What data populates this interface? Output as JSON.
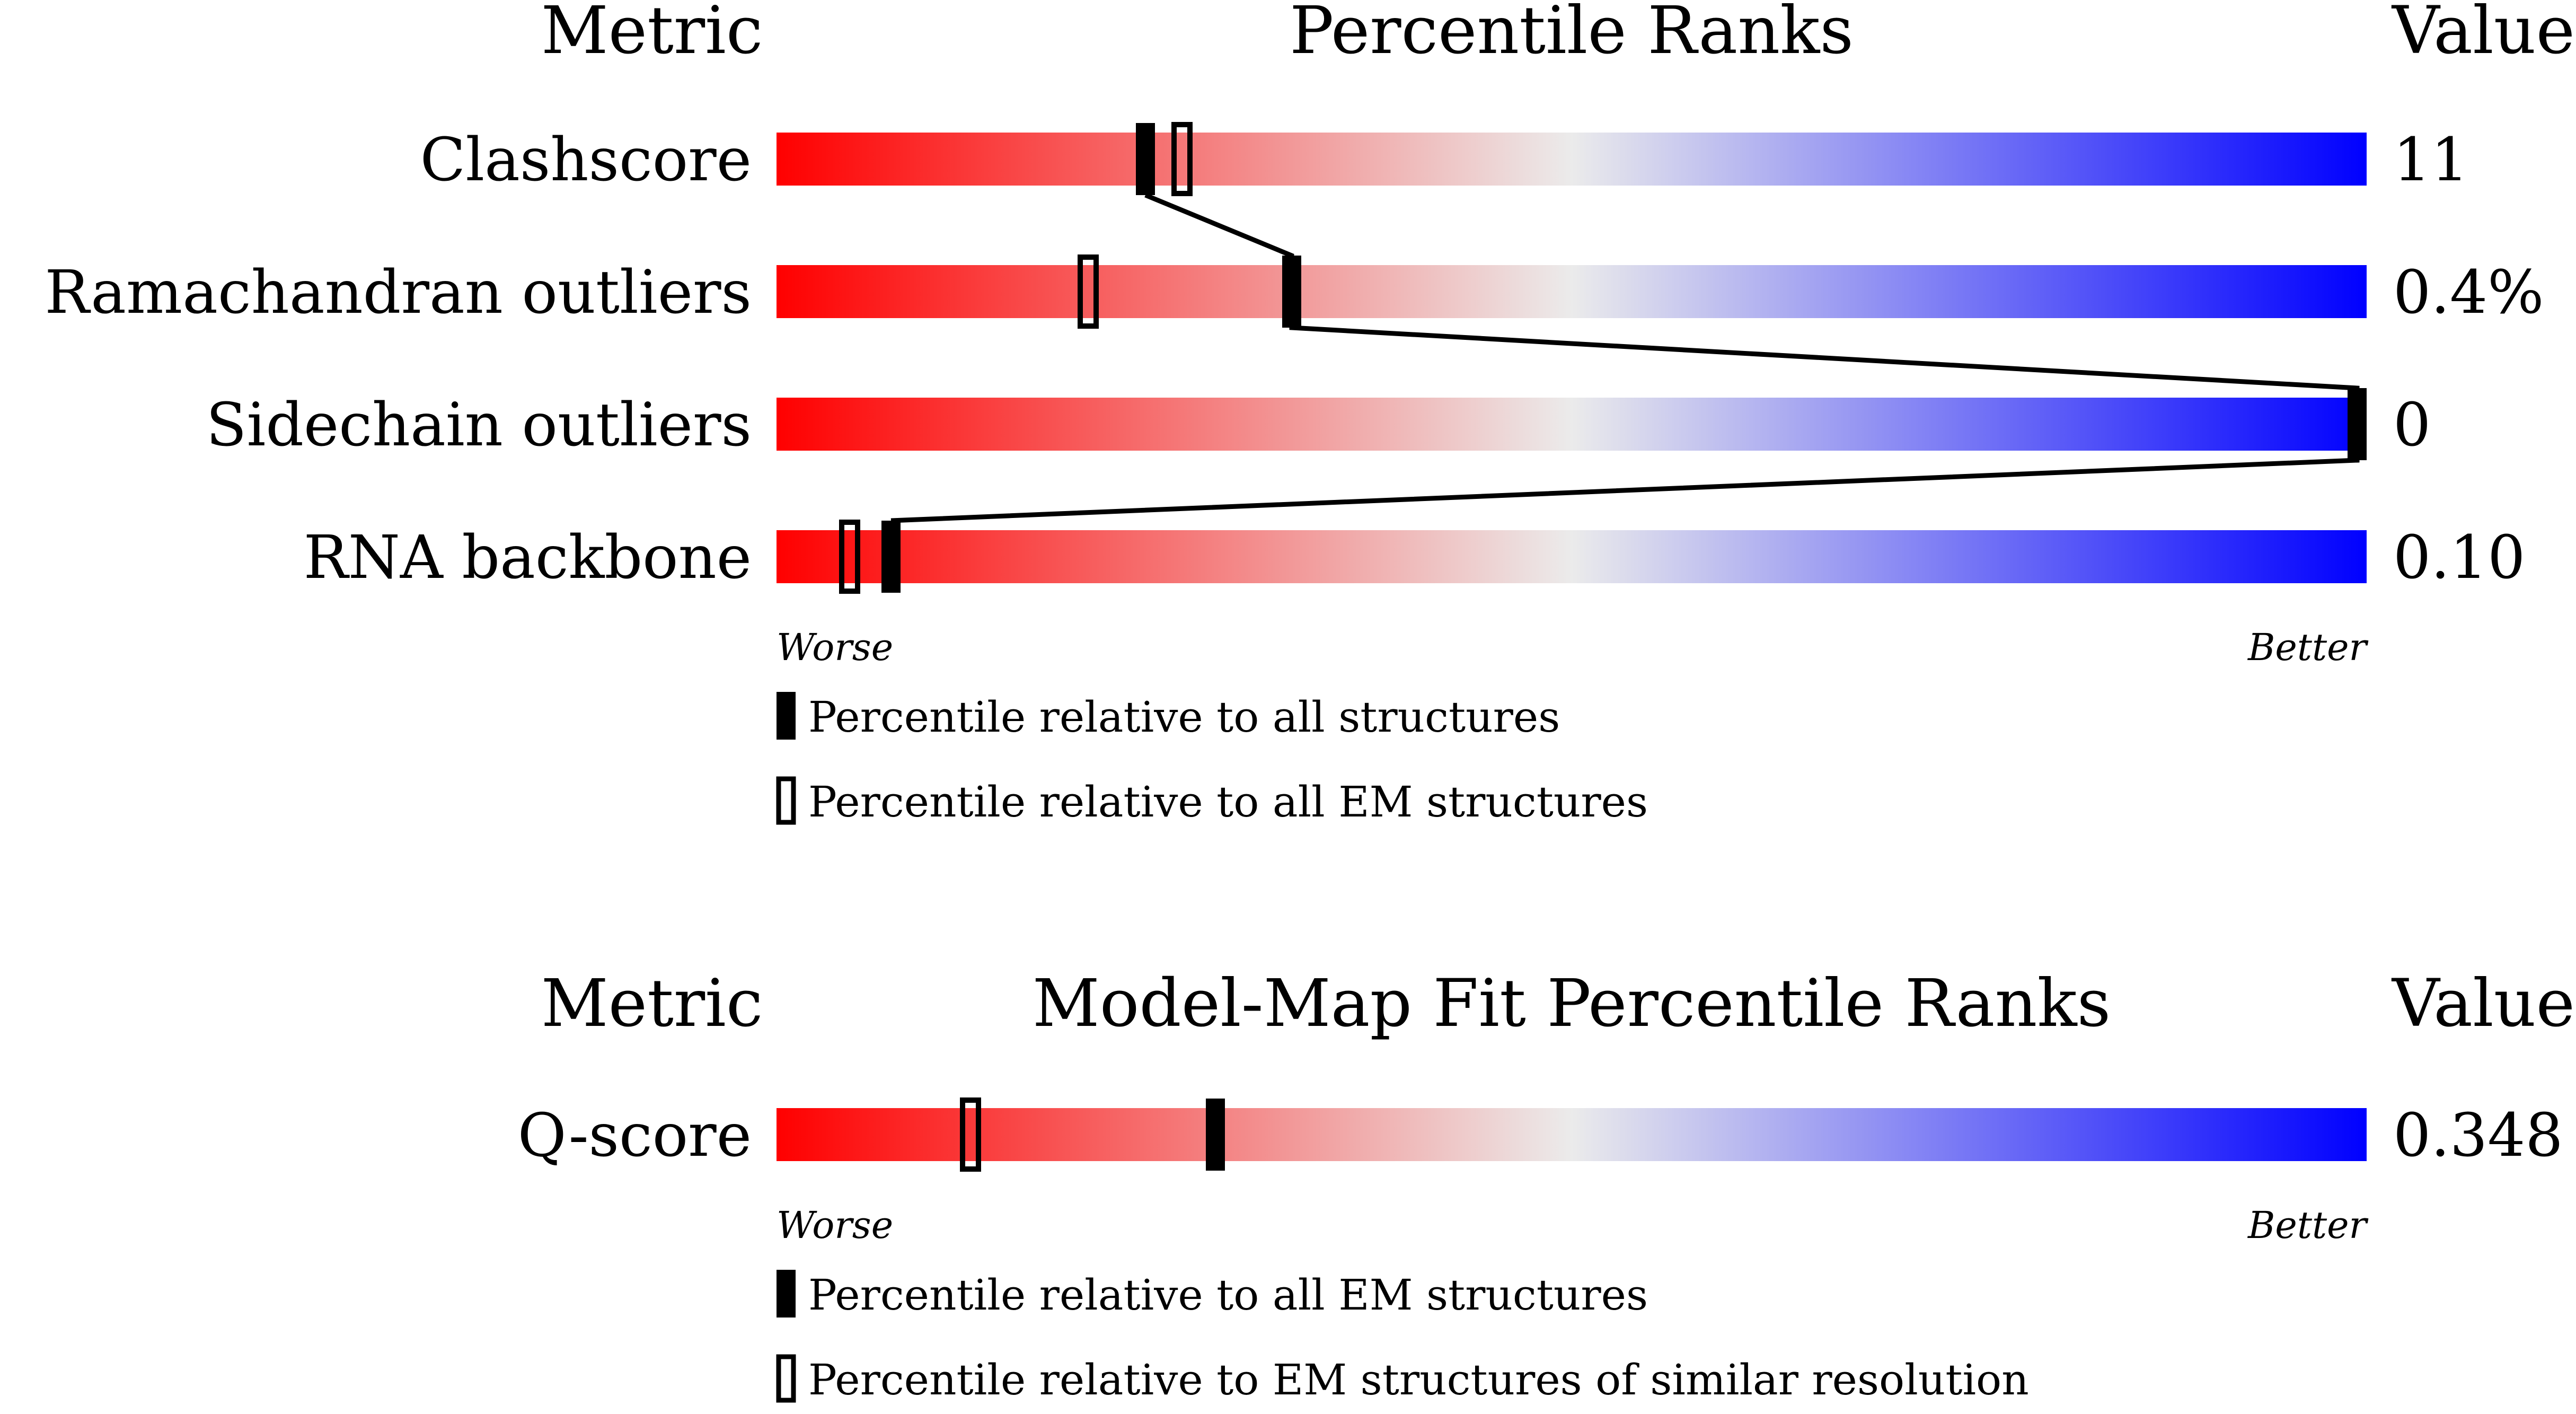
{
  "colors": {
    "worse": "#ff0000",
    "middle": "#ebebeb",
    "better": "#0000ff",
    "marker": "#000000"
  },
  "chart_data": [
    {
      "type": "percentile-slider",
      "header": {
        "metric": "Metric",
        "title": "Percentile Ranks",
        "value": "Value"
      },
      "xlim": [
        0,
        100
      ],
      "end_labels": {
        "worse": "Worse",
        "better": "Better"
      },
      "legend": [
        {
          "marker": "filled",
          "label": "Percentile relative to all structures"
        },
        {
          "marker": "open",
          "label": "Percentile relative to all EM structures"
        }
      ],
      "rows": [
        {
          "metric": "Clashscore",
          "value": "11",
          "percentile_all": 23.2,
          "percentile_em": 25.5
        },
        {
          "metric": "Ramachandran outliers",
          "value": "0.4%",
          "percentile_all": 32.4,
          "percentile_em": 19.6
        },
        {
          "metric": "Sidechain outliers",
          "value": "0",
          "percentile_all": 100,
          "percentile_em": null
        },
        {
          "metric": "RNA backbone",
          "value": "0.10",
          "percentile_all": 7.2,
          "percentile_em": 4.6
        }
      ],
      "connect_all_markers": true
    },
    {
      "type": "percentile-slider",
      "header": {
        "metric": "Metric",
        "title": "Model-Map Fit Percentile Ranks",
        "value": "Value"
      },
      "xlim": [
        0,
        100
      ],
      "end_labels": {
        "worse": "Worse",
        "better": "Better"
      },
      "legend": [
        {
          "marker": "filled",
          "label": "Percentile relative to all EM structures"
        },
        {
          "marker": "open",
          "label": "Percentile relative to EM structures of similar resolution"
        }
      ],
      "rows": [
        {
          "metric": "Q-score",
          "value": "0.348",
          "percentile_all": 27.6,
          "percentile_em": 12.2
        }
      ],
      "connect_all_markers": false
    }
  ]
}
